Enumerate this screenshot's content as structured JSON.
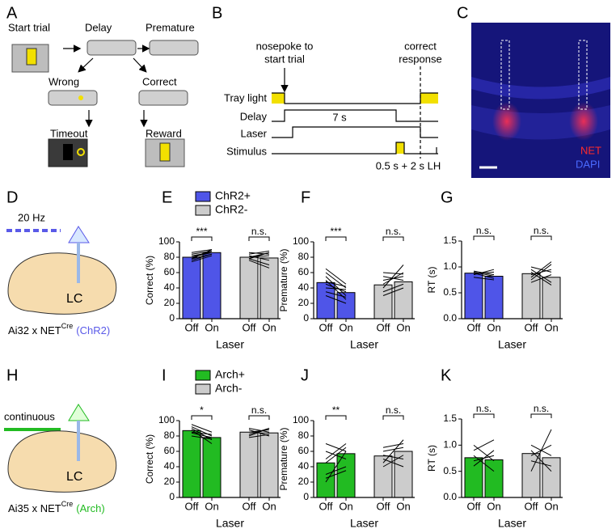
{
  "panel_labels": [
    "A",
    "B",
    "C",
    "D",
    "E",
    "F",
    "G",
    "H",
    "I",
    "J",
    "K"
  ],
  "panel_a": {
    "labels": [
      "Start trial",
      "Delay",
      "Premature",
      "Wrong",
      "Correct",
      "Timeout",
      "Reward"
    ]
  },
  "panel_b": {
    "event_top": "nosepoke to",
    "event_bottom": "start trial",
    "response_top": "correct",
    "response_bottom": "response",
    "rows": [
      "Tray light",
      "Delay",
      "Laser",
      "Stimulus"
    ],
    "delay_label": "7 s",
    "stimulus_label": "0.5 s + 2 s LH"
  },
  "panel_c": {
    "labels": [
      "NET",
      "DAPI"
    ]
  },
  "panel_d": {
    "stimulation": "20 Hz",
    "region": "LC",
    "strain": "Ai32 x NET",
    "strain_sup": "Cre",
    "construct": "(ChR2)"
  },
  "panel_h": {
    "stimulation": "continuous",
    "region": "LC",
    "strain": "Ai35 x NET",
    "strain_sup": "Cre",
    "construct": "(Arch)"
  },
  "chart_data": [
    {
      "type": "bar",
      "ylabel": "Correct (%)",
      "xlabel": "Laser",
      "categories": [
        "Off",
        "On",
        "Off",
        "On"
      ],
      "values": [
        80,
        86,
        80,
        79
      ],
      "colors": [
        "#4f55e8",
        "#cccccc"
      ],
      "legend": [
        "ChR2+",
        "ChR2-"
      ],
      "significance": [
        "***",
        "n.s."
      ],
      "ylim": [
        0,
        100
      ],
      "yticks": [
        0,
        20,
        40,
        60,
        80,
        100
      ],
      "individual": [
        [
          [
            76,
            84
          ],
          [
            80,
            88
          ],
          [
            82,
            86
          ],
          [
            78,
            90
          ],
          [
            84,
            88
          ],
          [
            74,
            82
          ],
          [
            80,
            86
          ],
          [
            86,
            90
          ],
          [
            78,
            84
          ]
        ],
        [
          [
            80,
            86
          ],
          [
            84,
            88
          ],
          [
            78,
            70
          ],
          [
            82,
            76
          ],
          [
            76,
            66
          ],
          [
            86,
            84
          ],
          [
            80,
            82
          ],
          [
            78,
            86
          ]
        ]
      ]
    },
    {
      "type": "bar",
      "ylabel": "Premature (%)",
      "xlabel": "Laser",
      "categories": [
        "Off",
        "On",
        "Off",
        "On"
      ],
      "values": [
        47,
        34,
        44,
        48
      ],
      "colors": [
        "#4f55e8",
        "#cccccc"
      ],
      "significance": [
        "***",
        "n.s."
      ],
      "ylim": [
        0,
        100
      ],
      "yticks": [
        0,
        20,
        40,
        60,
        80,
        100
      ],
      "individual": [
        [
          [
            55,
            30
          ],
          [
            60,
            40
          ],
          [
            45,
            35
          ],
          [
            50,
            25
          ],
          [
            40,
            38
          ],
          [
            35,
            28
          ],
          [
            30,
            20
          ],
          [
            48,
            42
          ],
          [
            65,
            45
          ]
        ],
        [
          [
            40,
            70
          ],
          [
            50,
            55
          ],
          [
            45,
            60
          ],
          [
            35,
            45
          ],
          [
            30,
            40
          ],
          [
            55,
            50
          ],
          [
            60,
            58
          ]
        ]
      ]
    },
    {
      "type": "bar",
      "ylabel": "RT (s)",
      "xlabel": "Laser",
      "categories": [
        "Off",
        "On",
        "Off",
        "On"
      ],
      "values": [
        0.88,
        0.82,
        0.87,
        0.8
      ],
      "colors": [
        "#4f55e8",
        "#cccccc"
      ],
      "significance": [
        "n.s.",
        "n.s."
      ],
      "ylim": [
        0,
        1.5
      ],
      "yticks": [
        {
          "value": 0,
          "label": "0.0"
        },
        {
          "value": 0.5,
          "label": "0.5"
        },
        {
          "value": 1,
          "label": "1.0"
        },
        {
          "value": 1.5,
          "label": "1.5"
        }
      ],
      "individual": [
        [
          [
            0.9,
            0.82
          ],
          [
            0.85,
            0.95
          ],
          [
            0.88,
            0.78
          ],
          [
            0.92,
            0.85
          ],
          [
            0.8,
            0.75
          ],
          [
            0.87,
            0.9
          ]
        ],
        [
          [
            0.75,
            1.05
          ],
          [
            0.9,
            0.65
          ],
          [
            1.0,
            0.9
          ],
          [
            0.85,
            0.95
          ],
          [
            0.8,
            1.1
          ],
          [
            0.95,
            0.7
          ],
          [
            0.7,
            0.85
          ]
        ]
      ]
    },
    {
      "type": "bar",
      "ylabel": "Correct (%)",
      "xlabel": "Laser",
      "categories": [
        "Off",
        "On",
        "Off",
        "On"
      ],
      "values": [
        87,
        78,
        85,
        84
      ],
      "colors": [
        "#22bb22",
        "#cccccc"
      ],
      "legend": [
        "Arch+",
        "Arch-"
      ],
      "significance": [
        "*",
        "n.s."
      ],
      "ylim": [
        0,
        100
      ],
      "yticks": [
        0,
        20,
        40,
        60,
        80,
        100
      ],
      "individual": [
        [
          [
            92,
            80
          ],
          [
            88,
            70
          ],
          [
            85,
            82
          ],
          [
            90,
            75
          ],
          [
            80,
            76
          ],
          [
            95,
            85
          ],
          [
            84,
            78
          ]
        ],
        [
          [
            80,
            90
          ],
          [
            88,
            80
          ],
          [
            85,
            88
          ],
          [
            90,
            85
          ],
          [
            78,
            82
          ],
          [
            82,
            90
          ]
        ]
      ]
    },
    {
      "type": "bar",
      "ylabel": "Premature (%)",
      "xlabel": "Laser",
      "categories": [
        "Off",
        "On",
        "Off",
        "On"
      ],
      "values": [
        45,
        57,
        54,
        60
      ],
      "colors": [
        "#22bb22",
        "#cccccc"
      ],
      "significance": [
        "**",
        "n.s."
      ],
      "ylim": [
        0,
        100
      ],
      "yticks": [
        0,
        20,
        40,
        60,
        80,
        100
      ],
      "individual": [
        [
          [
            20,
            60
          ],
          [
            30,
            40
          ],
          [
            50,
            70
          ],
          [
            60,
            50
          ],
          [
            25,
            35
          ],
          [
            45,
            65
          ],
          [
            70,
            60
          ]
        ],
        [
          [
            40,
            55
          ],
          [
            45,
            75
          ],
          [
            60,
            65
          ],
          [
            55,
            50
          ],
          [
            50,
            40
          ],
          [
            65,
            70
          ]
        ]
      ]
    },
    {
      "type": "bar",
      "ylabel": "RT (s)",
      "xlabel": "Laser",
      "categories": [
        "Off",
        "On",
        "Off",
        "On"
      ],
      "values": [
        0.76,
        0.72,
        0.84,
        0.76
      ],
      "colors": [
        "#22bb22",
        "#cccccc"
      ],
      "significance": [
        "n.s.",
        "n.s."
      ],
      "ylim": [
        0,
        1.5
      ],
      "yticks": [
        {
          "value": 0,
          "label": "0.0"
        },
        {
          "value": 0.5,
          "label": "0.5"
        },
        {
          "value": 1,
          "label": "1.0"
        },
        {
          "value": 1.5,
          "label": "1.5"
        }
      ],
      "individual": [
        [
          [
            0.9,
            1.1
          ],
          [
            0.6,
            0.9
          ],
          [
            0.8,
            0.5
          ],
          [
            0.7,
            0.8
          ],
          [
            1.0,
            0.7
          ]
        ],
        [
          [
            0.5,
            1.3
          ],
          [
            1.0,
            0.8
          ],
          [
            0.9,
            0.5
          ],
          [
            0.8,
            1.0
          ],
          [
            0.7,
            0.6
          ]
        ]
      ]
    }
  ]
}
